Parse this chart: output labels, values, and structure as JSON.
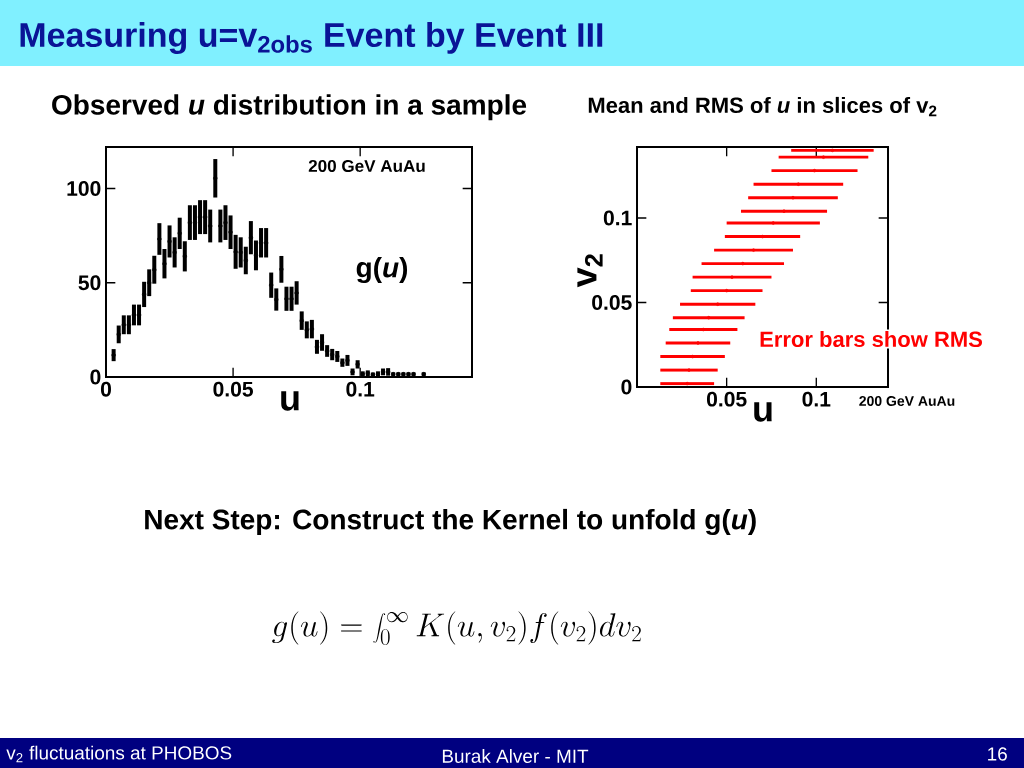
{
  "chart_data": [
    {
      "type": "scatter",
      "title": "Observed *u* distribution in a sample",
      "xlabel": "u",
      "color": "#000000",
      "x": [
        0.003,
        0.005,
        0.007,
        0.009,
        0.011,
        0.013,
        0.015,
        0.017,
        0.019,
        0.021,
        0.023,
        0.025,
        0.027,
        0.029,
        0.031,
        0.033,
        0.035,
        0.037,
        0.039,
        0.041,
        0.043,
        0.045,
        0.047,
        0.049,
        0.051,
        0.053,
        0.055,
        0.057,
        0.059,
        0.061,
        0.063,
        0.065,
        0.067,
        0.069,
        0.071,
        0.073,
        0.075,
        0.077,
        0.079,
        0.081,
        0.083,
        0.085,
        0.087,
        0.089,
        0.091,
        0.093,
        0.095,
        0.097,
        0.099,
        0.101,
        0.103,
        0.105,
        0.107,
        0.109,
        0.111,
        0.113,
        0.115,
        0.117,
        0.119,
        0.121,
        0.125
      ],
      "values": [
        11.6,
        22.6,
        27.7,
        27.7,
        32.9,
        32.9,
        43.8,
        50,
        56.9,
        73.2,
        60.1,
        71.9,
        66.1,
        76.2,
        64,
        81.9,
        81.9,
        84.8,
        84.8,
        80.1,
        105.4,
        80.1,
        81.9,
        76.8,
        66.4,
        66.1,
        61.8,
        73.9,
        64.5,
        71.2,
        71.2,
        48.7,
        41.1,
        57.1,
        41.5,
        41.5,
        44.6,
        29.9,
        25,
        25.4,
        16,
        18.3,
        13.8,
        11.9,
        10.9,
        7.6,
        8.8,
        2.7,
        6.7,
        1.5,
        2,
        1.2,
        1.5,
        2.7,
        2.7,
        1.5,
        1.5,
        1.5,
        1.5,
        1.5,
        1.5
      ],
      "errors": [
        3.2,
        4.7,
        5,
        5,
        5.5,
        5.5,
        6.7,
        7.1,
        7.4,
        8.4,
        7.8,
        8.5,
        8,
        8.3,
        8,
        9.2,
        9.2,
        9,
        9,
        8.7,
        10.2,
        8.7,
        9.2,
        8.9,
        9,
        8,
        7.3,
        8.8,
        7.9,
        7.8,
        7.8,
        6.7,
        5.9,
        7.1,
        6.4,
        6.4,
        6.2,
        4.9,
        4.5,
        4.9,
        3.7,
        4.4,
        3.1,
        3,
        2.9,
        2.2,
        2.9,
        1.8,
        2.2,
        1.5,
        1.5,
        1.2,
        1.5,
        1.8,
        2,
        1,
        1,
        1,
        1,
        1,
        1
      ],
      "xlim": [
        0,
        0.144
      ],
      "ylim": [
        0,
        122
      ],
      "xticks": [
        0,
        0.05,
        0.1
      ],
      "yticks": [
        0,
        50,
        100
      ],
      "annotations": [
        "200 GeV AuAu",
        "g(*u*)",
        "Measuring u=v$_{2obs}$ Event by Event III",
        "Next Step: Construct the Kernel to unfold g(*u*)",
        "g(u) = \\int_0^{\\infty} K(u,v_2) f(v_2) dv_2",
        "v$_{2}$ fluctuations at PHOBOS",
        "Burak Alver - MIT",
        "16"
      ]
    },
    {
      "type": "scatter",
      "title": "Mean and RMS of *u* in slices of v$_{2}$",
      "xlabel": "u",
      "ylabel": "v$_{2}$",
      "color": "#ff0000",
      "x": [
        0.028,
        0.029,
        0.031,
        0.034,
        0.037,
        0.04,
        0.045,
        0.05,
        0.053,
        0.059,
        0.065,
        0.07,
        0.076,
        0.082,
        0.087,
        0.09,
        0.099,
        0.104,
        0.109
      ],
      "values": [
        0.002,
        0.01,
        0.018,
        0.026,
        0.034,
        0.041,
        0.049,
        0.057,
        0.065,
        0.073,
        0.081,
        0.089,
        0.097,
        0.104,
        0.112,
        0.12,
        0.128,
        0.136,
        0.14
      ],
      "xerrors": [
        0.015,
        0.016,
        0.018,
        0.018,
        0.019,
        0.02,
        0.021,
        0.02,
        0.022,
        0.023,
        0.022,
        0.021,
        0.026,
        0.024,
        0.025,
        0.025,
        0.024,
        0.025,
        0.023
      ],
      "xlim": [
        0,
        0.14
      ],
      "ylim": [
        0,
        0.142
      ],
      "xticks": [
        0.05,
        0.1
      ],
      "yticks": [
        0,
        0.05,
        0.1
      ],
      "annotations": [
        "Error bars show RMS",
        "200 GeV AuAu"
      ]
    }
  ]
}
